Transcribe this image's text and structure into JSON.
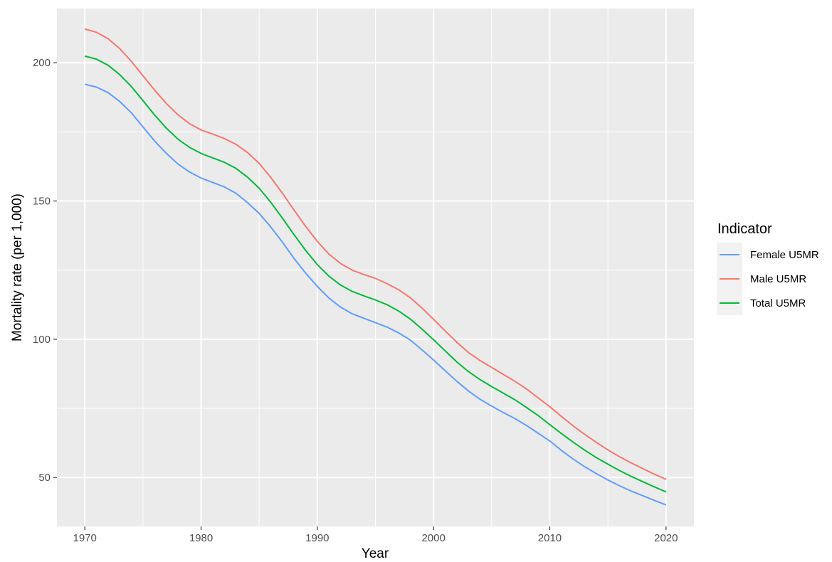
{
  "chart_data": {
    "type": "line",
    "title": "",
    "xlabel": "Year",
    "ylabel": "Mortality rate (per 1,000)",
    "xlim": [
      1967.6,
      2022.4
    ],
    "ylim": [
      32.3,
      219.6
    ],
    "xticks": [
      1970,
      1980,
      1990,
      2000,
      2010,
      2020
    ],
    "xtick_labels": [
      "1970",
      "1980",
      "1990",
      "2000",
      "2010",
      "2020"
    ],
    "yticks": [
      50,
      100,
      150,
      200
    ],
    "ytick_labels": [
      "50",
      "100",
      "150",
      "200"
    ],
    "grid": true,
    "legend": {
      "title": "Indicator",
      "position": "right"
    },
    "panel_background": "#ebebeb",
    "grid_color": "#ffffff",
    "x": [
      1970,
      1971,
      1972,
      1973,
      1974,
      1975,
      1976,
      1977,
      1978,
      1979,
      1980,
      1981,
      1982,
      1983,
      1984,
      1985,
      1986,
      1987,
      1988,
      1989,
      1990,
      1991,
      1992,
      1993,
      1994,
      1995,
      1996,
      1997,
      1998,
      1999,
      2000,
      2001,
      2002,
      2003,
      2004,
      2005,
      2006,
      2007,
      2008,
      2009,
      2010,
      2011,
      2012,
      2013,
      2014,
      2015,
      2016,
      2017,
      2018,
      2019,
      2020
    ],
    "series": [
      {
        "name": "Female U5MR",
        "color": "#619cff",
        "values": [
          192.2,
          191.2,
          189.2,
          186.0,
          181.9,
          176.8,
          171.7,
          167.3,
          163.4,
          160.5,
          158.3,
          156.7,
          155.1,
          152.8,
          149.4,
          145.5,
          140.6,
          135.1,
          129.2,
          123.9,
          119.1,
          114.9,
          111.6,
          109.2,
          107.6,
          106.0,
          104.4,
          102.3,
          99.7,
          96.2,
          92.5,
          88.6,
          84.8,
          81.3,
          78.3,
          75.8,
          73.5,
          71.3,
          68.8,
          66.0,
          63.2,
          59.8,
          56.7,
          53.9,
          51.4,
          49.1,
          47.0,
          45.1,
          43.4,
          41.7,
          40.1
        ]
      },
      {
        "name": "Male U5MR",
        "color": "#f8766d",
        "values": [
          212.2,
          211.0,
          208.7,
          205.1,
          200.5,
          195.3,
          190.1,
          185.3,
          181.2,
          178.0,
          175.7,
          174.2,
          172.6,
          170.5,
          167.5,
          163.6,
          158.5,
          152.8,
          146.7,
          140.8,
          135.4,
          130.8,
          127.4,
          125.0,
          123.4,
          122.0,
          120.1,
          117.9,
          115.0,
          111.3,
          107.2,
          103.0,
          98.9,
          95.2,
          92.3,
          89.8,
          87.3,
          84.8,
          82.0,
          78.8,
          75.6,
          72.1,
          68.7,
          65.6,
          62.7,
          60.0,
          57.5,
          55.3,
          53.2,
          51.2,
          49.3
        ]
      },
      {
        "name": "Total U5MR",
        "color": "#00ba38",
        "values": [
          202.4,
          201.3,
          199.1,
          195.7,
          191.4,
          186.3,
          181.1,
          176.4,
          172.4,
          169.4,
          167.2,
          165.6,
          164.0,
          161.8,
          158.6,
          154.6,
          149.5,
          143.8,
          137.8,
          132.1,
          127.0,
          122.8,
          119.6,
          117.3,
          115.7,
          114.2,
          112.5,
          110.2,
          107.3,
          103.7,
          99.8,
          95.8,
          91.8,
          88.3,
          85.4,
          82.9,
          80.5,
          78.1,
          75.3,
          72.4,
          69.1,
          65.9,
          62.8,
          59.9,
          57.2,
          54.8,
          52.5,
          50.4,
          48.5,
          46.6,
          44.8
        ]
      }
    ]
  }
}
